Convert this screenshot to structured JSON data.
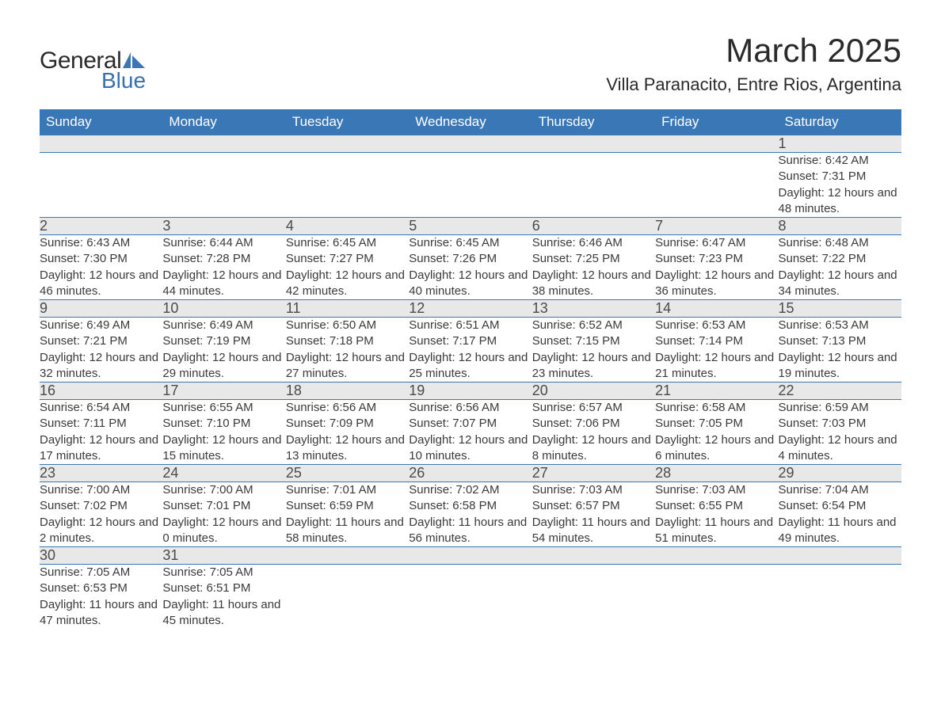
{
  "brand": {
    "general": "General",
    "blue": "Blue",
    "sail_color": "#3a77b7"
  },
  "title": {
    "month": "March 2025",
    "location": "Villa Paranacito, Entre Rios, Argentina"
  },
  "style": {
    "header_bg": "#3a77b7",
    "header_text": "#ffffff",
    "daynum_bg": "#e8e8e8",
    "body_text": "#3a3a3a",
    "row_border": "#3a77b7",
    "font_family": "Arial, Helvetica, sans-serif",
    "month_fontsize_pt": 32,
    "location_fontsize_pt": 17,
    "header_fontsize_pt": 13,
    "daynum_fontsize_pt": 14,
    "cell_fontsize_pt": 11
  },
  "weekdays": [
    "Sunday",
    "Monday",
    "Tuesday",
    "Wednesday",
    "Thursday",
    "Friday",
    "Saturday"
  ],
  "labels": {
    "sunrise": "Sunrise: ",
    "sunset": "Sunset: ",
    "daylight": "Daylight: "
  },
  "weeks": [
    [
      null,
      null,
      null,
      null,
      null,
      null,
      {
        "n": 1,
        "sunrise": "6:42 AM",
        "sunset": "7:31 PM",
        "daylight": "12 hours and 48 minutes."
      }
    ],
    [
      {
        "n": 2,
        "sunrise": "6:43 AM",
        "sunset": "7:30 PM",
        "daylight": "12 hours and 46 minutes."
      },
      {
        "n": 3,
        "sunrise": "6:44 AM",
        "sunset": "7:28 PM",
        "daylight": "12 hours and 44 minutes."
      },
      {
        "n": 4,
        "sunrise": "6:45 AM",
        "sunset": "7:27 PM",
        "daylight": "12 hours and 42 minutes."
      },
      {
        "n": 5,
        "sunrise": "6:45 AM",
        "sunset": "7:26 PM",
        "daylight": "12 hours and 40 minutes."
      },
      {
        "n": 6,
        "sunrise": "6:46 AM",
        "sunset": "7:25 PM",
        "daylight": "12 hours and 38 minutes."
      },
      {
        "n": 7,
        "sunrise": "6:47 AM",
        "sunset": "7:23 PM",
        "daylight": "12 hours and 36 minutes."
      },
      {
        "n": 8,
        "sunrise": "6:48 AM",
        "sunset": "7:22 PM",
        "daylight": "12 hours and 34 minutes."
      }
    ],
    [
      {
        "n": 9,
        "sunrise": "6:49 AM",
        "sunset": "7:21 PM",
        "daylight": "12 hours and 32 minutes."
      },
      {
        "n": 10,
        "sunrise": "6:49 AM",
        "sunset": "7:19 PM",
        "daylight": "12 hours and 29 minutes."
      },
      {
        "n": 11,
        "sunrise": "6:50 AM",
        "sunset": "7:18 PM",
        "daylight": "12 hours and 27 minutes."
      },
      {
        "n": 12,
        "sunrise": "6:51 AM",
        "sunset": "7:17 PM",
        "daylight": "12 hours and 25 minutes."
      },
      {
        "n": 13,
        "sunrise": "6:52 AM",
        "sunset": "7:15 PM",
        "daylight": "12 hours and 23 minutes."
      },
      {
        "n": 14,
        "sunrise": "6:53 AM",
        "sunset": "7:14 PM",
        "daylight": "12 hours and 21 minutes."
      },
      {
        "n": 15,
        "sunrise": "6:53 AM",
        "sunset": "7:13 PM",
        "daylight": "12 hours and 19 minutes."
      }
    ],
    [
      {
        "n": 16,
        "sunrise": "6:54 AM",
        "sunset": "7:11 PM",
        "daylight": "12 hours and 17 minutes."
      },
      {
        "n": 17,
        "sunrise": "6:55 AM",
        "sunset": "7:10 PM",
        "daylight": "12 hours and 15 minutes."
      },
      {
        "n": 18,
        "sunrise": "6:56 AM",
        "sunset": "7:09 PM",
        "daylight": "12 hours and 13 minutes."
      },
      {
        "n": 19,
        "sunrise": "6:56 AM",
        "sunset": "7:07 PM",
        "daylight": "12 hours and 10 minutes."
      },
      {
        "n": 20,
        "sunrise": "6:57 AM",
        "sunset": "7:06 PM",
        "daylight": "12 hours and 8 minutes."
      },
      {
        "n": 21,
        "sunrise": "6:58 AM",
        "sunset": "7:05 PM",
        "daylight": "12 hours and 6 minutes."
      },
      {
        "n": 22,
        "sunrise": "6:59 AM",
        "sunset": "7:03 PM",
        "daylight": "12 hours and 4 minutes."
      }
    ],
    [
      {
        "n": 23,
        "sunrise": "7:00 AM",
        "sunset": "7:02 PM",
        "daylight": "12 hours and 2 minutes."
      },
      {
        "n": 24,
        "sunrise": "7:00 AM",
        "sunset": "7:01 PM",
        "daylight": "12 hours and 0 minutes."
      },
      {
        "n": 25,
        "sunrise": "7:01 AM",
        "sunset": "6:59 PM",
        "daylight": "11 hours and 58 minutes."
      },
      {
        "n": 26,
        "sunrise": "7:02 AM",
        "sunset": "6:58 PM",
        "daylight": "11 hours and 56 minutes."
      },
      {
        "n": 27,
        "sunrise": "7:03 AM",
        "sunset": "6:57 PM",
        "daylight": "11 hours and 54 minutes."
      },
      {
        "n": 28,
        "sunrise": "7:03 AM",
        "sunset": "6:55 PM",
        "daylight": "11 hours and 51 minutes."
      },
      {
        "n": 29,
        "sunrise": "7:04 AM",
        "sunset": "6:54 PM",
        "daylight": "11 hours and 49 minutes."
      }
    ],
    [
      {
        "n": 30,
        "sunrise": "7:05 AM",
        "sunset": "6:53 PM",
        "daylight": "11 hours and 47 minutes."
      },
      {
        "n": 31,
        "sunrise": "7:05 AM",
        "sunset": "6:51 PM",
        "daylight": "11 hours and 45 minutes."
      },
      null,
      null,
      null,
      null,
      null
    ]
  ]
}
